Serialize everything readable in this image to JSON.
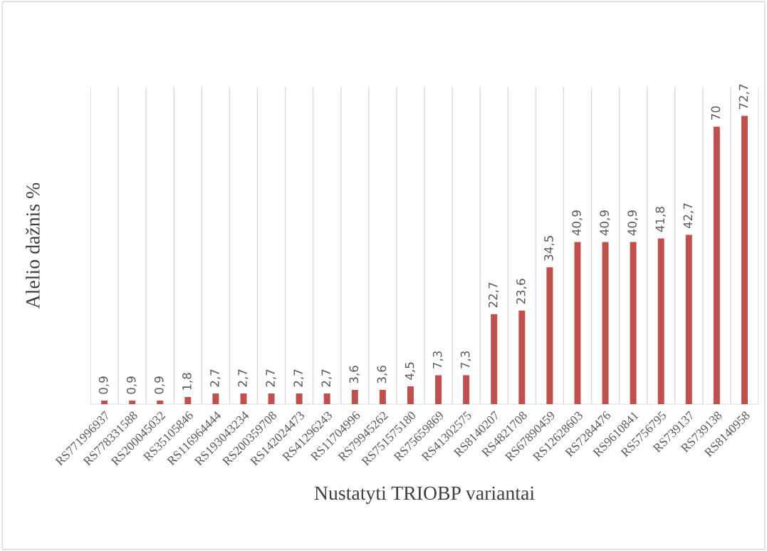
{
  "chart_data": {
    "type": "bar",
    "xlabel": "Nustatyti TRIOBP variantai",
    "ylabel": "Alelio dažnis %",
    "categories": [
      "RS771996937",
      "RS778331588",
      "RS200045032",
      "RS35105846",
      "RS116964444",
      "RS193043234",
      "RS200359708",
      "RS142024473",
      "RS41296243",
      "RS11704996",
      "RS79945262",
      "RS751575180",
      "RS75659869",
      "RS41302575",
      "RS8140207",
      "RS4821708",
      "RS67890459",
      "RS12628603",
      "RS7284476",
      "RS9610841",
      "RS5756795",
      "RS739137",
      "RS739138",
      "RS8140958"
    ],
    "values": [
      0.9,
      0.9,
      0.9,
      1.8,
      2.7,
      2.7,
      2.7,
      2.7,
      2.7,
      3.6,
      3.6,
      4.5,
      7.3,
      7.3,
      22.7,
      23.6,
      34.5,
      40.9,
      40.9,
      40.9,
      41.8,
      42.7,
      70,
      72.7
    ],
    "value_labels": [
      "0,9",
      "0,9",
      "0,9",
      "1,8",
      "2,7",
      "2,7",
      "2,7",
      "2,7",
      "2,7",
      "3,6",
      "3,6",
      "4,5",
      "7,3",
      "7,3",
      "22,7",
      "23,6",
      "34,5",
      "40,9",
      "40,9",
      "40,9",
      "41,8",
      "42,7",
      "70",
      "72,7"
    ],
    "color": "#c0504d",
    "ylim": [
      0,
      80
    ],
    "tick_labels": "x",
    "grid": "x"
  }
}
